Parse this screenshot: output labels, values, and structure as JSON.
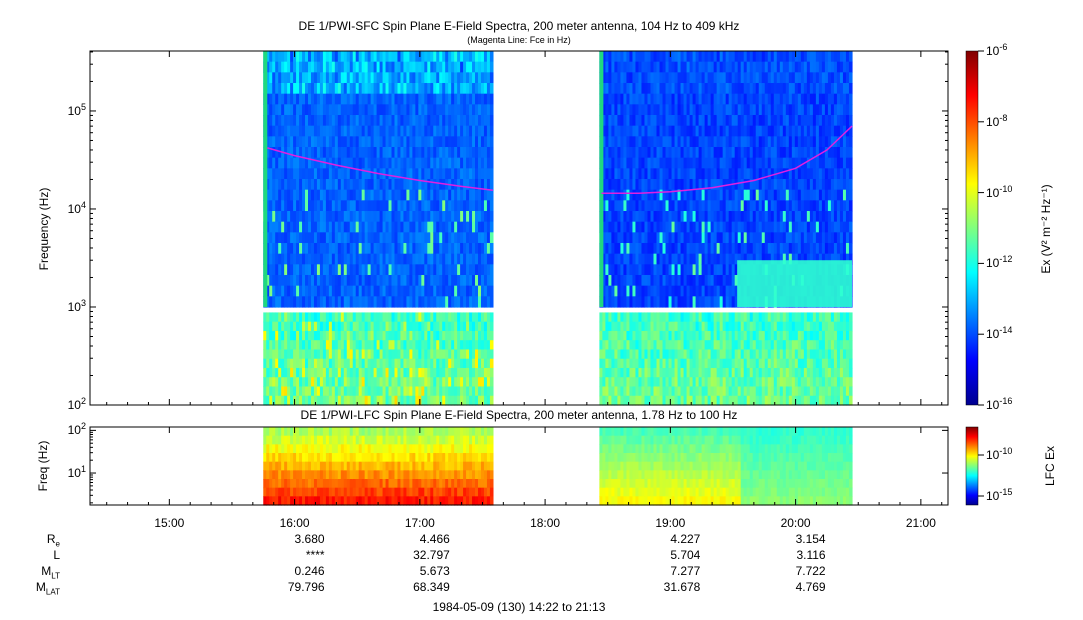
{
  "sfc": {
    "title": "DE 1/PWI-SFC  Spin Plane E-Field Spectra, 200 meter antenna, 104 Hz to 409 kHz",
    "subtitle": "(Magenta Line: Fce in Hz)",
    "ylabel": "Frequency (Hz)",
    "yticks": [
      {
        "base": "10",
        "exp": "5"
      },
      {
        "base": "10",
        "exp": "4"
      },
      {
        "base": "10",
        "exp": "3"
      },
      {
        "base": "10",
        "exp": "2"
      }
    ],
    "colorbar_label": "Ex (V² m⁻² Hz⁻¹)",
    "colorbar_ticks": [
      {
        "base": "10",
        "exp": "-6"
      },
      {
        "base": "10",
        "exp": "-8"
      },
      {
        "base": "10",
        "exp": "-10"
      },
      {
        "base": "10",
        "exp": "-12"
      },
      {
        "base": "10",
        "exp": "-14"
      },
      {
        "base": "10",
        "exp": "-16"
      }
    ],
    "line_color": "#e020e0"
  },
  "lfc": {
    "title": "DE 1/PWI-LFC  Spin Plane E-Field Spectra, 200 meter antenna, 1.78 Hz to 100 Hz",
    "ylabel": "Freq (Hz)",
    "yticks": [
      {
        "base": "10",
        "exp": "2"
      },
      {
        "base": "10",
        "exp": "1"
      }
    ],
    "colorbar_label": "LFC Ex",
    "colorbar_ticks": [
      {
        "base": "10",
        "exp": "-10"
      },
      {
        "base": "10",
        "exp": "-15"
      }
    ]
  },
  "xticks": [
    "15:00",
    "16:00",
    "17:00",
    "18:00",
    "19:00",
    "20:00",
    "21:00"
  ],
  "ephemeris": {
    "rows": [
      {
        "label": "R",
        "sub": "e",
        "values": [
          "3.680",
          "4.466",
          "",
          "4.227",
          "3.154"
        ]
      },
      {
        "label": "L",
        "sub": "",
        "values": [
          "****",
          "32.797",
          "",
          "5.704",
          "3.116"
        ]
      },
      {
        "label": "M",
        "sub": "LT",
        "values": [
          "0.246",
          "5.673",
          "",
          "7.277",
          "7.722"
        ]
      },
      {
        "label": "M",
        "sub": "LAT",
        "values": [
          "79.796",
          "68.349",
          "",
          "31.678",
          "4.769"
        ]
      }
    ]
  },
  "footer": "1984-05-09 (130) 14:22 to 21:13",
  "chart_data": [
    {
      "type": "heatmap",
      "title": "DE 1/PWI-SFC  Spin Plane E-Field Spectra, 200 meter antenna, 104 Hz to 409 kHz",
      "subtitle": "(Magenta Line: Fce in Hz)",
      "xlabel": "",
      "ylabel": "Frequency (Hz)",
      "x_range": [
        "14:22",
        "21:13"
      ],
      "ylim": [
        100,
        409000
      ],
      "yscale": "log",
      "colorbar": {
        "label": "Ex (V² m⁻² Hz⁻¹)",
        "range": [
          1e-16,
          1e-06
        ],
        "scale": "log"
      },
      "data_intervals": [
        [
          "15:45",
          "17:35"
        ],
        [
          "18:26",
          "20:27"
        ]
      ],
      "fce_line": {
        "segments": [
          {
            "x": [
              "15:47",
              "16:00",
              "16:20",
              "16:40",
              "17:00",
              "17:20",
              "17:35"
            ],
            "y": [
              42000,
              35000,
              28000,
              23000,
              19500,
              17000,
              15500
            ]
          },
          {
            "x": [
              "18:27",
              "18:45",
              "19:00",
              "19:20",
              "19:40",
              "20:00",
              "20:15",
              "20:27"
            ],
            "y": [
              14500,
              14500,
              15000,
              16500,
              19500,
              26000,
              40000,
              70000
            ]
          }
        ]
      }
    },
    {
      "type": "heatmap",
      "title": "DE 1/PWI-LFC  Spin Plane E-Field Spectra, 200 meter antenna, 1.78 Hz to 100 Hz",
      "xlabel": "",
      "ylabel": "Freq (Hz)",
      "x_range": [
        "14:22",
        "21:13"
      ],
      "ylim": [
        1.78,
        100
      ],
      "yscale": "log",
      "colorbar": {
        "label": "LFC Ex",
        "range": [
          1e-16,
          1e-09
        ],
        "scale": "log"
      },
      "data_intervals": [
        [
          "15:45",
          "17:35"
        ],
        [
          "18:26",
          "20:27"
        ]
      ]
    }
  ]
}
